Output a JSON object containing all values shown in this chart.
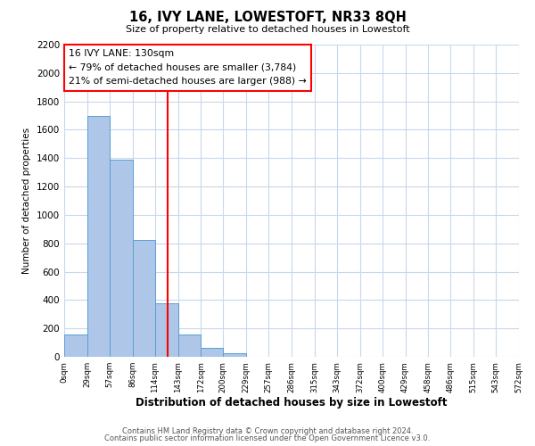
{
  "title": "16, IVY LANE, LOWESTOFT, NR33 8QH",
  "subtitle": "Size of property relative to detached houses in Lowestoft",
  "xlabel": "Distribution of detached houses by size in Lowestoft",
  "ylabel": "Number of detached properties",
  "bar_edges": [
    0,
    29,
    57,
    86,
    114,
    143,
    172,
    200,
    229,
    257,
    286,
    315,
    343,
    372,
    400,
    429,
    458,
    486,
    515,
    543,
    572
  ],
  "bar_heights": [
    155,
    1700,
    1390,
    825,
    380,
    160,
    65,
    25,
    0,
    0,
    0,
    0,
    0,
    0,
    0,
    0,
    0,
    0,
    0,
    0
  ],
  "bar_color": "#aec6e8",
  "bar_edge_color": "#5a9fd4",
  "property_line_x": 130,
  "property_line_color": "red",
  "annotation_title": "16 IVY LANE: 130sqm",
  "annotation_line1": "← 79% of detached houses are smaller (3,784)",
  "annotation_line2": "21% of semi-detached houses are larger (988) →",
  "ylim": [
    0,
    2200
  ],
  "yticks": [
    0,
    200,
    400,
    600,
    800,
    1000,
    1200,
    1400,
    1600,
    1800,
    2000,
    2200
  ],
  "tick_labels": [
    "0sqm",
    "29sqm",
    "57sqm",
    "86sqm",
    "114sqm",
    "143sqm",
    "172sqm",
    "200sqm",
    "229sqm",
    "257sqm",
    "286sqm",
    "315sqm",
    "343sqm",
    "372sqm",
    "400sqm",
    "429sqm",
    "458sqm",
    "486sqm",
    "515sqm",
    "543sqm",
    "572sqm"
  ],
  "footnote1": "Contains HM Land Registry data © Crown copyright and database right 2024.",
  "footnote2": "Contains public sector information licensed under the Open Government Licence v3.0.",
  "background_color": "#ffffff",
  "grid_color": "#c8d8ec"
}
